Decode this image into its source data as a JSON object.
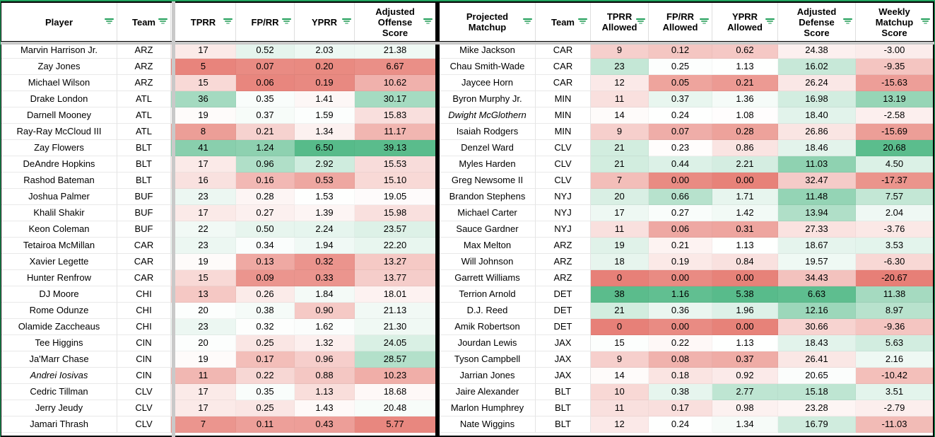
{
  "app": {
    "kind": "spreadsheet-grid",
    "heat_low_color": "#e67c73",
    "heat_mid_color": "#ffffff",
    "heat_high_color": "#57bb8a",
    "filter_icon_color": "#1e9e58",
    "range_border_color": "#21a35f",
    "freeze_bar_color": "#c9c9c9"
  },
  "tables": [
    {
      "id": "offense",
      "columns": [
        {
          "label": "Player",
          "type": "text",
          "filter_icon": true
        },
        {
          "label": "Team",
          "type": "text",
          "filter_icon": true
        },
        {
          "label": "TPRR",
          "type": "num",
          "filter_icon": true,
          "scale": {
            "min": 4,
            "mid": 19.5,
            "max": 50,
            "invert": false
          }
        },
        {
          "label": "FP/RR",
          "type": "num",
          "filter_icon": true,
          "scale": {
            "min": 0.04,
            "mid": 0.3,
            "max": 1.7,
            "invert": false
          }
        },
        {
          "label": "YPRR",
          "type": "num",
          "filter_icon": true,
          "scale": {
            "min": 0.05,
            "mid": 1.5,
            "max": 6.5,
            "invert": false
          }
        },
        {
          "label": "Adjusted Offense Score",
          "type": "num",
          "filter_icon": true,
          "scale": {
            "min": 4.5,
            "mid": 19.5,
            "max": 39.5,
            "invert": false
          }
        }
      ],
      "rows": [
        {
          "cells": [
            "Marvin Harrison Jr.",
            "ARZ",
            "17",
            "0.52",
            "2.03",
            "21.38"
          ],
          "italic": false
        },
        {
          "cells": [
            "Zay Jones",
            "ARZ",
            "5",
            "0.07",
            "0.20",
            "6.67"
          ],
          "italic": false
        },
        {
          "cells": [
            "Michael Wilson",
            "ARZ",
            "15",
            "0.06",
            "0.19",
            "10.62"
          ],
          "italic": false
        },
        {
          "cells": [
            "Drake London",
            "ATL",
            "36",
            "0.35",
            "1.41",
            "30.17"
          ],
          "italic": false
        },
        {
          "cells": [
            "Darnell Mooney",
            "ATL",
            "19",
            "0.37",
            "1.59",
            "15.83"
          ],
          "italic": false
        },
        {
          "cells": [
            "Ray-Ray McCloud III",
            "ATL",
            "8",
            "0.21",
            "1.34",
            "11.17"
          ],
          "italic": false
        },
        {
          "cells": [
            "Zay Flowers",
            "BLT",
            "41",
            "1.24",
            "6.50",
            "39.13"
          ],
          "italic": false
        },
        {
          "cells": [
            "DeAndre Hopkins",
            "BLT",
            "17",
            "0.96",
            "2.92",
            "15.53"
          ],
          "italic": false
        },
        {
          "cells": [
            "Rashod Bateman",
            "BLT",
            "16",
            "0.16",
            "0.53",
            "15.10"
          ],
          "italic": false
        },
        {
          "cells": [
            "Joshua Palmer",
            "BUF",
            "23",
            "0.28",
            "1.53",
            "19.05"
          ],
          "italic": false
        },
        {
          "cells": [
            "Khalil Shakir",
            "BUF",
            "17",
            "0.27",
            "1.39",
            "15.98"
          ],
          "italic": false
        },
        {
          "cells": [
            "Keon Coleman",
            "BUF",
            "22",
            "0.50",
            "2.24",
            "23.57"
          ],
          "italic": false
        },
        {
          "cells": [
            "Tetairoa McMillan",
            "CAR",
            "23",
            "0.34",
            "1.94",
            "22.20"
          ],
          "italic": false
        },
        {
          "cells": [
            "Xavier Legette",
            "CAR",
            "19",
            "0.13",
            "0.32",
            "13.27"
          ],
          "italic": false
        },
        {
          "cells": [
            "Hunter Renfrow",
            "CAR",
            "15",
            "0.09",
            "0.33",
            "13.77"
          ],
          "italic": false
        },
        {
          "cells": [
            "DJ Moore",
            "CHI",
            "13",
            "0.26",
            "1.84",
            "18.01"
          ],
          "italic": false
        },
        {
          "cells": [
            "Rome Odunze",
            "CHI",
            "20",
            "0.38",
            "0.90",
            "21.13"
          ],
          "italic": false
        },
        {
          "cells": [
            "Olamide Zaccheaus",
            "CHI",
            "23",
            "0.32",
            "1.62",
            "21.30"
          ],
          "italic": false
        },
        {
          "cells": [
            "Tee Higgins",
            "CIN",
            "20",
            "0.25",
            "1.32",
            "24.05"
          ],
          "italic": false
        },
        {
          "cells": [
            "Ja'Marr Chase",
            "CIN",
            "19",
            "0.17",
            "0.96",
            "28.57"
          ],
          "italic": false
        },
        {
          "cells": [
            "Andrei Iosivas",
            "CIN",
            "11",
            "0.22",
            "0.88",
            "10.23"
          ],
          "italic": true
        },
        {
          "cells": [
            "Cedric Tillman",
            "CLV",
            "17",
            "0.35",
            "1.13",
            "18.68"
          ],
          "italic": false
        },
        {
          "cells": [
            "Jerry Jeudy",
            "CLV",
            "17",
            "0.25",
            "1.43",
            "20.48"
          ],
          "italic": false
        },
        {
          "cells": [
            "Jamari Thrash",
            "CLV",
            "7",
            "0.11",
            "0.43",
            "5.77"
          ],
          "italic": false
        }
      ]
    },
    {
      "id": "defense",
      "columns": [
        {
          "label": "Projected Matchup",
          "type": "text",
          "filter_icon": true
        },
        {
          "label": "Team",
          "type": "text",
          "filter_icon": true
        },
        {
          "label": "TPRR Allowed",
          "type": "num",
          "filter_icon": true,
          "scale": {
            "min": -0.5,
            "mid": 14.5,
            "max": 38.5,
            "invert": false
          }
        },
        {
          "label": "FP/RR Allowed",
          "type": "num",
          "filter_icon": true,
          "scale": {
            "min": -0.03,
            "mid": 0.235,
            "max": 1.22,
            "invert": false
          }
        },
        {
          "label": "YPRR Allowed",
          "type": "num",
          "filter_icon": true,
          "scale": {
            "min": -0.05,
            "mid": 1.1,
            "max": 5.4,
            "invert": false
          }
        },
        {
          "label": "Adjusted Defense Score",
          "type": "num",
          "filter_icon": true,
          "scale": {
            "min": 6.0,
            "mid": 21.0,
            "max": 50.0,
            "invert": true
          }
        },
        {
          "label": "Weekly Matchup Score",
          "type": "num",
          "filter_icon": true,
          "scale": {
            "min": -21.2,
            "mid": 0,
            "max": 21.2,
            "invert": false
          }
        }
      ],
      "rows": [
        {
          "cells": [
            "Mike Jackson",
            "CAR",
            "9",
            "0.12",
            "0.62",
            "24.38",
            "-3.00"
          ],
          "italic": false
        },
        {
          "cells": [
            "Chau Smith-Wade",
            "CAR",
            "23",
            "0.25",
            "1.13",
            "16.02",
            "-9.35"
          ],
          "italic": false
        },
        {
          "cells": [
            "Jaycee Horn",
            "CAR",
            "12",
            "0.05",
            "0.21",
            "26.24",
            "-15.63"
          ],
          "italic": false
        },
        {
          "cells": [
            "Byron Murphy Jr.",
            "MIN",
            "11",
            "0.37",
            "1.36",
            "16.98",
            "13.19"
          ],
          "italic": false
        },
        {
          "cells": [
            "Dwight McGlothern",
            "MIN",
            "14",
            "0.24",
            "1.08",
            "18.40",
            "-2.58"
          ],
          "italic": true
        },
        {
          "cells": [
            "Isaiah Rodgers",
            "MIN",
            "9",
            "0.07",
            "0.28",
            "26.86",
            "-15.69"
          ],
          "italic": false
        },
        {
          "cells": [
            "Denzel Ward",
            "CLV",
            "21",
            "0.23",
            "0.86",
            "18.46",
            "20.68"
          ],
          "italic": false
        },
        {
          "cells": [
            "Myles Harden",
            "CLV",
            "21",
            "0.44",
            "2.21",
            "11.03",
            "4.50"
          ],
          "italic": false
        },
        {
          "cells": [
            "Greg Newsome II",
            "CLV",
            "7",
            "0.00",
            "0.00",
            "32.47",
            "-17.37"
          ],
          "italic": false
        },
        {
          "cells": [
            "Brandon Stephens",
            "NYJ",
            "20",
            "0.66",
            "1.71",
            "11.48",
            "7.57"
          ],
          "italic": false
        },
        {
          "cells": [
            "Michael Carter",
            "NYJ",
            "17",
            "0.27",
            "1.42",
            "13.94",
            "2.04"
          ],
          "italic": false
        },
        {
          "cells": [
            "Sauce Gardner",
            "NYJ",
            "11",
            "0.06",
            "0.31",
            "27.33",
            "-3.76"
          ],
          "italic": false
        },
        {
          "cells": [
            "Max Melton",
            "ARZ",
            "19",
            "0.21",
            "1.13",
            "18.67",
            "3.53"
          ],
          "italic": false
        },
        {
          "cells": [
            "Will Johnson",
            "ARZ",
            "18",
            "0.19",
            "0.84",
            "19.57",
            "-6.30"
          ],
          "italic": false
        },
        {
          "cells": [
            "Garrett Williams",
            "ARZ",
            "0",
            "0.00",
            "0.00",
            "34.43",
            "-20.67"
          ],
          "italic": false
        },
        {
          "cells": [
            "Terrion Arnold",
            "DET",
            "38",
            "1.16",
            "5.38",
            "6.63",
            "11.38"
          ],
          "italic": false
        },
        {
          "cells": [
            "D.J. Reed",
            "DET",
            "21",
            "0.36",
            "1.96",
            "12.16",
            "8.97"
          ],
          "italic": false
        },
        {
          "cells": [
            "Amik Robertson",
            "DET",
            "0",
            "0.00",
            "0.00",
            "30.66",
            "-9.36"
          ],
          "italic": false
        },
        {
          "cells": [
            "Jourdan Lewis",
            "JAX",
            "15",
            "0.22",
            "1.13",
            "18.43",
            "5.63"
          ],
          "italic": false
        },
        {
          "cells": [
            "Tyson Campbell",
            "JAX",
            "9",
            "0.08",
            "0.37",
            "26.41",
            "2.16"
          ],
          "italic": false
        },
        {
          "cells": [
            "Jarrian Jones",
            "JAX",
            "14",
            "0.18",
            "0.92",
            "20.65",
            "-10.42"
          ],
          "italic": false
        },
        {
          "cells": [
            "Jaire Alexander",
            "BLT",
            "10",
            "0.38",
            "2.77",
            "15.18",
            "3.51"
          ],
          "italic": false
        },
        {
          "cells": [
            "Marlon Humphrey",
            "BLT",
            "11",
            "0.17",
            "0.98",
            "23.28",
            "-2.79"
          ],
          "italic": false
        },
        {
          "cells": [
            "Nate Wiggins",
            "BLT",
            "12",
            "0.24",
            "1.34",
            "16.79",
            "-11.03"
          ],
          "italic": false
        }
      ]
    }
  ]
}
